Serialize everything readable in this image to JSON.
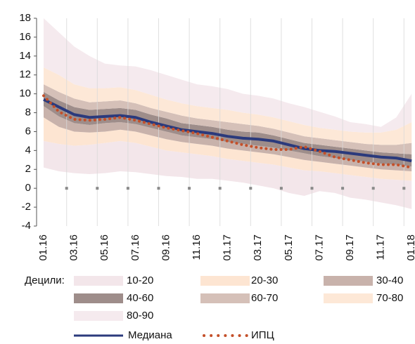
{
  "chart_data": {
    "type": "fan",
    "categories": [
      "01.16",
      null,
      "03.16",
      null,
      "05.16",
      null,
      "07.16",
      null,
      "09.16",
      null,
      "11.16",
      null,
      "01.17",
      null,
      "03.17",
      null,
      "05.17",
      null,
      "07.17",
      null,
      "09.17",
      null,
      "11.17",
      null,
      "01.18"
    ],
    "ylim": [
      -4,
      18
    ],
    "yticks": [
      -4,
      -2,
      0,
      2,
      4,
      6,
      8,
      10,
      12,
      14,
      16,
      18
    ],
    "legend_title": "Децили:",
    "bands": [
      {
        "name": "10-20",
        "color": "#f3e6ea",
        "lower": [
          2.2,
          1.8,
          1.6,
          1.5,
          1.6,
          1.8,
          1.7,
          1.5,
          1.3,
          1.2,
          1.0,
          1.0,
          0.8,
          0.6,
          0.3,
          0.0,
          -0.5,
          -0.8,
          -0.3,
          -0.5,
          -1.0,
          -1.2,
          -1.5,
          -1.8,
          -2.2
        ],
        "upper": [
          5.0,
          4.7,
          4.5,
          4.6,
          4.8,
          5.0,
          4.8,
          4.4,
          4.0,
          3.8,
          3.6,
          3.4,
          3.1,
          2.9,
          2.7,
          2.5,
          2.2,
          1.9,
          1.8,
          1.6,
          1.4,
          1.2,
          1.0,
          0.9,
          0.8
        ]
      },
      {
        "name": "20-30",
        "color": "#fde5d2",
        "lower": [
          5.0,
          4.7,
          4.5,
          4.6,
          4.8,
          5.0,
          4.8,
          4.4,
          4.0,
          3.8,
          3.6,
          3.4,
          3.1,
          2.9,
          2.7,
          2.5,
          2.2,
          1.9,
          1.8,
          1.6,
          1.4,
          1.2,
          1.0,
          0.9,
          0.8
        ],
        "upper": [
          7.5,
          6.5,
          6.0,
          5.9,
          6.0,
          6.2,
          6.0,
          5.6,
          5.2,
          4.9,
          4.7,
          4.5,
          4.2,
          4.0,
          3.8,
          3.6,
          3.3,
          3.0,
          2.8,
          2.6,
          2.4,
          2.2,
          2.0,
          1.9,
          1.8
        ]
      },
      {
        "name": "30-40",
        "color": "#c8b2ab",
        "lower": [
          7.5,
          6.5,
          6.0,
          5.9,
          6.0,
          6.2,
          6.0,
          5.6,
          5.2,
          4.9,
          4.7,
          4.5,
          4.2,
          4.0,
          3.8,
          3.6,
          3.3,
          3.0,
          2.8,
          2.6,
          2.4,
          2.2,
          2.0,
          1.9,
          1.8
        ],
        "upper": [
          8.7,
          7.6,
          6.9,
          6.7,
          6.9,
          7.0,
          6.8,
          6.4,
          6.0,
          5.6,
          5.4,
          5.2,
          4.9,
          4.7,
          4.5,
          4.3,
          4.0,
          3.7,
          3.4,
          3.2,
          3.0,
          2.8,
          2.6,
          2.5,
          2.3
        ]
      },
      {
        "name": "40-60",
        "color": "#9e8d8a",
        "lower": [
          8.7,
          7.6,
          6.9,
          6.7,
          6.9,
          7.0,
          6.8,
          6.4,
          6.0,
          5.6,
          5.4,
          5.2,
          4.9,
          4.7,
          4.5,
          4.3,
          4.0,
          3.7,
          3.4,
          3.2,
          3.0,
          2.8,
          2.6,
          2.5,
          2.3
        ],
        "upper": [
          10.2,
          9.3,
          8.6,
          8.3,
          8.4,
          8.5,
          8.3,
          7.8,
          7.4,
          6.9,
          6.7,
          6.5,
          6.2,
          6.0,
          5.9,
          5.6,
          5.2,
          4.8,
          4.6,
          4.4,
          4.2,
          4.0,
          3.8,
          3.7,
          3.6
        ]
      },
      {
        "name": "60-70",
        "color": "#d5c0b8",
        "lower": [
          10.2,
          9.3,
          8.6,
          8.3,
          8.4,
          8.5,
          8.3,
          7.8,
          7.4,
          6.9,
          6.7,
          6.5,
          6.2,
          6.0,
          5.9,
          5.6,
          5.2,
          4.8,
          4.6,
          4.4,
          4.2,
          4.0,
          3.8,
          3.7,
          3.6
        ],
        "upper": [
          11.0,
          10.2,
          9.5,
          9.1,
          9.2,
          9.3,
          9.0,
          8.5,
          8.1,
          7.7,
          7.4,
          7.2,
          7.0,
          6.8,
          6.6,
          6.3,
          5.9,
          5.5,
          5.3,
          5.1,
          4.9,
          4.7,
          4.6,
          4.6,
          4.8
        ]
      },
      {
        "name": "70-80",
        "color": "#fde8d7",
        "lower": [
          11.0,
          10.2,
          9.5,
          9.1,
          9.2,
          9.3,
          9.0,
          8.5,
          8.1,
          7.7,
          7.4,
          7.2,
          7.0,
          6.8,
          6.6,
          6.3,
          5.9,
          5.5,
          5.3,
          5.1,
          4.9,
          4.7,
          4.6,
          4.6,
          4.8
        ],
        "upper": [
          12.8,
          12.0,
          11.0,
          10.6,
          10.6,
          10.7,
          10.4,
          9.9,
          9.4,
          9.0,
          8.7,
          8.5,
          8.3,
          8.0,
          7.8,
          7.5,
          7.1,
          6.7,
          6.4,
          6.2,
          6.0,
          5.9,
          5.9,
          6.2,
          7.0
        ]
      },
      {
        "name": "80-90",
        "color": "#f5eaee",
        "lower": [
          12.8,
          12.0,
          11.0,
          10.6,
          10.6,
          10.7,
          10.4,
          9.9,
          9.4,
          9.0,
          8.7,
          8.5,
          8.3,
          8.0,
          7.8,
          7.5,
          7.1,
          6.7,
          6.4,
          6.2,
          6.0,
          5.9,
          5.9,
          6.2,
          7.0
        ],
        "upper": [
          18.0,
          16.5,
          15.0,
          14.0,
          13.2,
          13.0,
          12.9,
          12.5,
          12.0,
          11.5,
          11.0,
          10.8,
          10.5,
          10.0,
          9.8,
          9.5,
          9.0,
          8.6,
          8.1,
          7.6,
          7.0,
          6.8,
          6.5,
          7.5,
          10.0
        ]
      }
    ],
    "series": [
      {
        "name": "Медиана",
        "color": "#2b3a7c",
        "style": "solid",
        "values": [
          9.4,
          8.6,
          7.8,
          7.5,
          7.6,
          7.7,
          7.5,
          7.0,
          6.6,
          6.2,
          6.0,
          5.8,
          5.5,
          5.3,
          5.2,
          5.0,
          4.6,
          4.2,
          4.0,
          3.9,
          3.7,
          3.5,
          3.3,
          3.2,
          2.9
        ]
      },
      {
        "name": "ИПЦ",
        "color": "#c4502a",
        "style": "dotted",
        "values": [
          9.8,
          8.1,
          7.3,
          7.2,
          7.3,
          7.5,
          7.2,
          6.8,
          6.4,
          6.1,
          5.8,
          5.4,
          5.0,
          4.6,
          4.3,
          4.1,
          4.1,
          4.4,
          3.9,
          3.3,
          3.0,
          2.7,
          2.5,
          2.5,
          2.2
        ]
      }
    ]
  }
}
